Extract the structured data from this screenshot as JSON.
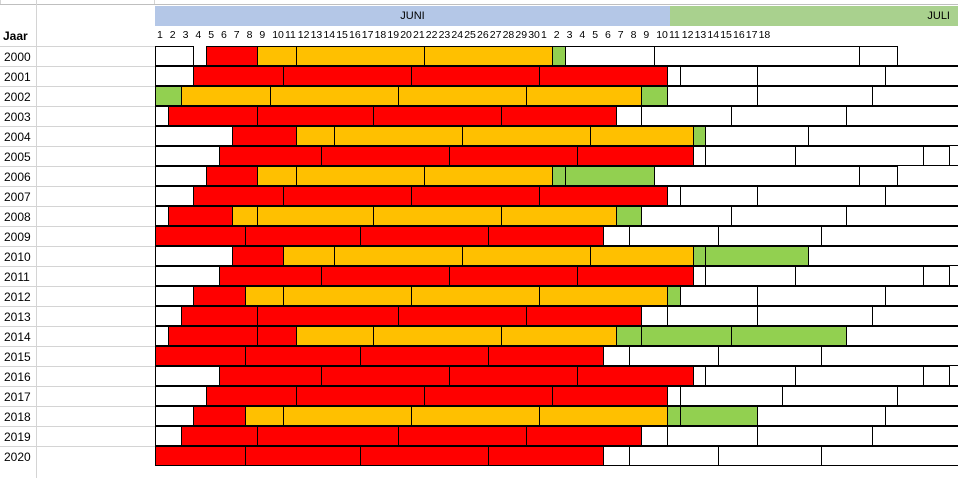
{
  "sheet": {
    "header_col": "Jaar",
    "month_june": "JUNI",
    "month_july": "JULI",
    "june_days": [
      "1",
      "2",
      "3",
      "4",
      "5",
      "6",
      "7",
      "8",
      "9",
      "10",
      "11",
      "12",
      "13",
      "14",
      "15",
      "16",
      "17",
      "18",
      "19",
      "20",
      "21",
      "22",
      "23",
      "24",
      "25",
      "26",
      "27",
      "28",
      "29",
      "30"
    ],
    "july_days": [
      "1",
      "2",
      "3",
      "4",
      "5",
      "6",
      "7",
      "8",
      "9",
      "10",
      "11",
      "12",
      "13",
      "14",
      "15",
      "16",
      "17",
      "18"
    ]
  },
  "colors": {
    "red": "#ff0000",
    "orange": "#ffc000",
    "green": "#92d050",
    "white": "#ffffff",
    "june_header": "#b4c7e7",
    "july_header": "#a9d18e"
  },
  "rows": [
    {
      "year": "2000",
      "segments": [
        [
          "w",
          1,
          4
        ],
        [
          "r",
          5,
          9
        ],
        [
          "o",
          9,
          12
        ],
        [
          "o",
          12,
          22
        ],
        [
          "o",
          22,
          32
        ],
        [
          "g",
          32,
          33
        ],
        [
          "w",
          33,
          40
        ],
        [
          "w",
          40,
          56
        ],
        [
          "w",
          56,
          59
        ]
      ]
    },
    {
      "year": "2001",
      "segments": [
        [
          "w",
          1,
          4
        ],
        [
          "r",
          4,
          11
        ],
        [
          "r",
          11,
          21
        ],
        [
          "r",
          21,
          31
        ],
        [
          "r",
          31,
          41
        ],
        [
          "w",
          41,
          42
        ],
        [
          "w",
          42,
          48
        ],
        [
          "w",
          48,
          58
        ],
        [
          "w",
          58,
          64
        ]
      ]
    },
    {
      "year": "2002",
      "segments": [
        [
          "g",
          1,
          3
        ],
        [
          "o",
          3,
          10
        ],
        [
          "o",
          10,
          20
        ],
        [
          "o",
          20,
          30
        ],
        [
          "o",
          30,
          39
        ],
        [
          "g",
          39,
          41
        ],
        [
          "w",
          41,
          48
        ],
        [
          "w",
          48,
          57
        ],
        [
          "w",
          57,
          64
        ]
      ]
    },
    {
      "year": "2003",
      "segments": [
        [
          "w",
          1,
          2
        ],
        [
          "r",
          2,
          9
        ],
        [
          "r",
          9,
          18
        ],
        [
          "r",
          18,
          28
        ],
        [
          "r",
          28,
          37
        ],
        [
          "w",
          37,
          39
        ],
        [
          "w",
          39,
          46
        ],
        [
          "w",
          46,
          55
        ],
        [
          "w",
          55,
          64
        ]
      ]
    },
    {
      "year": "2004",
      "segments": [
        [
          "w",
          1,
          7
        ],
        [
          "r",
          7,
          12
        ],
        [
          "o",
          12,
          15
        ],
        [
          "o",
          15,
          25
        ],
        [
          "o",
          25,
          35
        ],
        [
          "o",
          35,
          43
        ],
        [
          "g",
          43,
          44
        ],
        [
          "w",
          44,
          52
        ],
        [
          "w",
          52,
          64
        ]
      ]
    },
    {
      "year": "2005",
      "segments": [
        [
          "w",
          1,
          6
        ],
        [
          "r",
          6,
          14
        ],
        [
          "r",
          14,
          24
        ],
        [
          "r",
          24,
          34
        ],
        [
          "r",
          34,
          43
        ],
        [
          "w",
          43,
          44
        ],
        [
          "w",
          44,
          51
        ],
        [
          "w",
          51,
          61
        ],
        [
          "w",
          61,
          63
        ]
      ]
    },
    {
      "year": "2006",
      "segments": [
        [
          "w",
          1,
          5
        ],
        [
          "r",
          5,
          9
        ],
        [
          "o",
          9,
          12
        ],
        [
          "o",
          12,
          22
        ],
        [
          "o",
          22,
          32
        ],
        [
          "g",
          32,
          33
        ],
        [
          "g",
          33,
          40
        ],
        [
          "w",
          40,
          56
        ],
        [
          "w",
          56,
          59
        ]
      ]
    },
    {
      "year": "2007",
      "segments": [
        [
          "w",
          1,
          4
        ],
        [
          "r",
          4,
          11
        ],
        [
          "r",
          11,
          21
        ],
        [
          "r",
          21,
          31
        ],
        [
          "r",
          31,
          41
        ],
        [
          "w",
          41,
          42
        ],
        [
          "w",
          42,
          48
        ],
        [
          "w",
          48,
          58
        ],
        [
          "w",
          58,
          64
        ]
      ]
    },
    {
      "year": "2008",
      "segments": [
        [
          "w",
          1,
          2
        ],
        [
          "r",
          2,
          7
        ],
        [
          "o",
          7,
          9
        ],
        [
          "o",
          9,
          18
        ],
        [
          "o",
          18,
          28
        ],
        [
          "o",
          28,
          37
        ],
        [
          "g",
          37,
          39
        ],
        [
          "w",
          39,
          46
        ],
        [
          "w",
          46,
          55
        ],
        [
          "w",
          55,
          64
        ]
      ]
    },
    {
      "year": "2009",
      "segments": [
        [
          "r",
          1,
          8
        ],
        [
          "r",
          8,
          17
        ],
        [
          "r",
          17,
          27
        ],
        [
          "r",
          27,
          36
        ],
        [
          "w",
          36,
          38
        ],
        [
          "w",
          38,
          45
        ],
        [
          "w",
          45,
          53
        ],
        [
          "w",
          53,
          64
        ]
      ]
    },
    {
      "year": "2010",
      "segments": [
        [
          "w",
          1,
          7
        ],
        [
          "r",
          7,
          11
        ],
        [
          "o",
          11,
          15
        ],
        [
          "o",
          15,
          25
        ],
        [
          "o",
          25,
          35
        ],
        [
          "o",
          35,
          43
        ],
        [
          "g",
          43,
          44
        ],
        [
          "g",
          44,
          52
        ],
        [
          "w",
          52,
          64
        ]
      ]
    },
    {
      "year": "2011",
      "segments": [
        [
          "w",
          1,
          6
        ],
        [
          "r",
          6,
          14
        ],
        [
          "r",
          14,
          24
        ],
        [
          "r",
          24,
          34
        ],
        [
          "r",
          34,
          43
        ],
        [
          "w",
          43,
          44
        ],
        [
          "w",
          44,
          51
        ],
        [
          "w",
          51,
          61
        ],
        [
          "w",
          61,
          63
        ]
      ]
    },
    {
      "year": "2012",
      "segments": [
        [
          "w",
          1,
          4
        ],
        [
          "r",
          4,
          8
        ],
        [
          "o",
          8,
          11
        ],
        [
          "o",
          11,
          21
        ],
        [
          "o",
          21,
          31
        ],
        [
          "o",
          31,
          41
        ],
        [
          "g",
          41,
          42
        ],
        [
          "w",
          42,
          48
        ],
        [
          "w",
          48,
          58
        ],
        [
          "w",
          58,
          64
        ]
      ]
    },
    {
      "year": "2013",
      "segments": [
        [
          "w",
          1,
          3
        ],
        [
          "r",
          3,
          9
        ],
        [
          "r",
          9,
          20
        ],
        [
          "r",
          20,
          30
        ],
        [
          "r",
          30,
          39
        ],
        [
          "w",
          39,
          41
        ],
        [
          "w",
          41,
          48
        ],
        [
          "w",
          48,
          57
        ],
        [
          "w",
          57,
          64
        ]
      ]
    },
    {
      "year": "2014",
      "segments": [
        [
          "w",
          1,
          2
        ],
        [
          "r",
          2,
          9
        ],
        [
          "r",
          9,
          12
        ],
        [
          "o",
          12,
          18
        ],
        [
          "o",
          18,
          28
        ],
        [
          "o",
          28,
          37
        ],
        [
          "g",
          37,
          39
        ],
        [
          "g",
          39,
          46
        ],
        [
          "g",
          46,
          55
        ],
        [
          "w",
          55,
          64
        ]
      ]
    },
    {
      "year": "2015",
      "segments": [
        [
          "r",
          1,
          8
        ],
        [
          "r",
          8,
          17
        ],
        [
          "r",
          17,
          27
        ],
        [
          "r",
          27,
          36
        ],
        [
          "w",
          36,
          38
        ],
        [
          "w",
          38,
          45
        ],
        [
          "w",
          45,
          53
        ],
        [
          "w",
          53,
          64
        ]
      ]
    },
    {
      "year": "2016",
      "segments": [
        [
          "w",
          1,
          6
        ],
        [
          "r",
          6,
          14
        ],
        [
          "r",
          14,
          24
        ],
        [
          "r",
          24,
          34
        ],
        [
          "r",
          34,
          43
        ],
        [
          "w",
          43,
          44
        ],
        [
          "w",
          44,
          51
        ],
        [
          "w",
          51,
          61
        ],
        [
          "w",
          61,
          63
        ]
      ]
    },
    {
      "year": "2017",
      "segments": [
        [
          "w",
          1,
          5
        ],
        [
          "r",
          5,
          12
        ],
        [
          "r",
          12,
          22
        ],
        [
          "r",
          22,
          32
        ],
        [
          "r",
          32,
          41
        ],
        [
          "w",
          41,
          42
        ],
        [
          "w",
          42,
          50
        ],
        [
          "w",
          50,
          59
        ],
        [
          "w",
          59,
          64
        ]
      ]
    },
    {
      "year": "2018",
      "segments": [
        [
          "w",
          1,
          4
        ],
        [
          "r",
          4,
          8
        ],
        [
          "o",
          8,
          11
        ],
        [
          "o",
          11,
          21
        ],
        [
          "o",
          21,
          31
        ],
        [
          "o",
          31,
          41
        ],
        [
          "g",
          41,
          42
        ],
        [
          "g",
          42,
          48
        ],
        [
          "w",
          48,
          58
        ],
        [
          "w",
          58,
          64
        ]
      ]
    },
    {
      "year": "2019",
      "segments": [
        [
          "w",
          1,
          3
        ],
        [
          "r",
          3,
          9
        ],
        [
          "r",
          9,
          20
        ],
        [
          "r",
          20,
          30
        ],
        [
          "r",
          30,
          39
        ],
        [
          "w",
          39,
          41
        ],
        [
          "w",
          41,
          48
        ],
        [
          "w",
          48,
          57
        ],
        [
          "w",
          57,
          64
        ]
      ]
    },
    {
      "year": "2020",
      "segments": [
        [
          "r",
          1,
          8
        ],
        [
          "r",
          8,
          17
        ],
        [
          "r",
          17,
          27
        ],
        [
          "r",
          27,
          36
        ],
        [
          "w",
          36,
          38
        ],
        [
          "w",
          38,
          45
        ],
        [
          "w",
          45,
          53
        ],
        [
          "w",
          53,
          64
        ]
      ]
    }
  ]
}
